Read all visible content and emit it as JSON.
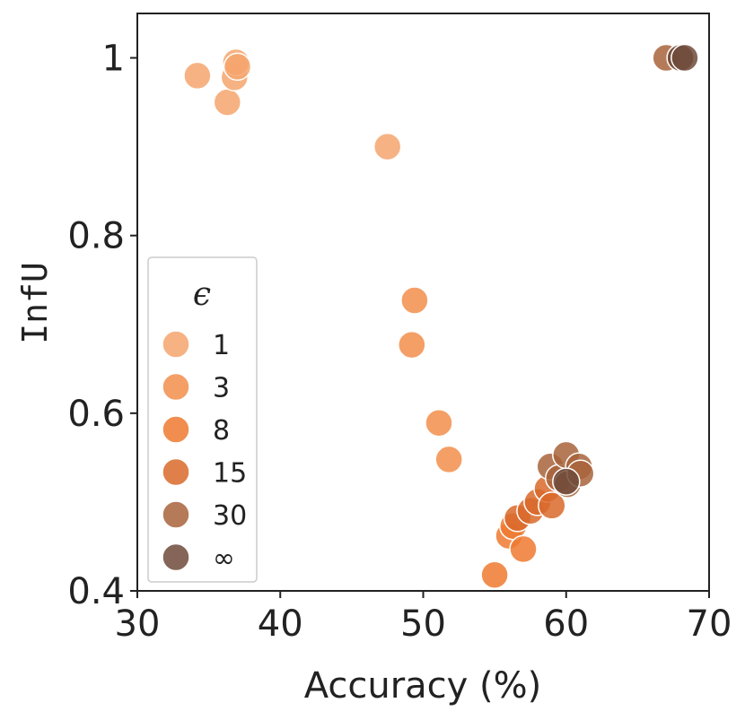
{
  "chart_data": {
    "type": "scatter",
    "xlabel": "Accuracy (%)",
    "ylabel": "InfU",
    "xlim": [
      30,
      70
    ],
    "ylim": [
      0.4,
      1.05
    ],
    "xticks": [
      "30",
      "40",
      "50",
      "60",
      "70"
    ],
    "yticks": [
      "0.4",
      "0.6",
      "0.8",
      "1"
    ],
    "grid": false,
    "legend": {
      "title": "ϵ",
      "placement": "bottom-left"
    },
    "series": [
      {
        "name": "1",
        "color": "#f6a56d",
        "points": [
          [
            34.2,
            0.98
          ],
          [
            36.3,
            0.95
          ],
          [
            36.8,
            0.978
          ],
          [
            36.9,
            0.995
          ],
          [
            37.0,
            0.99
          ],
          [
            47.5,
            0.9
          ]
        ]
      },
      {
        "name": "3",
        "color": "#f28e4b",
        "points": [
          [
            49.4,
            0.727
          ],
          [
            49.2,
            0.677
          ],
          [
            51.1,
            0.589
          ],
          [
            51.8,
            0.548
          ]
        ]
      },
      {
        "name": "8",
        "color": "#ee7a30",
        "points": [
          [
            55.0,
            0.418
          ],
          [
            56.0,
            0.462
          ],
          [
            56.3,
            0.473
          ],
          [
            57.0,
            0.447
          ]
        ]
      },
      {
        "name": "15",
        "color": "#d9692a",
        "points": [
          [
            56.6,
            0.482
          ],
          [
            57.5,
            0.49
          ],
          [
            58.0,
            0.5
          ],
          [
            58.7,
            0.515
          ],
          [
            59.0,
            0.496
          ]
        ]
      },
      {
        "name": "30",
        "color": "#a8643b",
        "points": [
          [
            58.9,
            0.54
          ],
          [
            59.5,
            0.527
          ],
          [
            60.0,
            0.553
          ],
          [
            60.1,
            0.52
          ],
          [
            60.9,
            0.54
          ],
          [
            61.0,
            0.532
          ],
          [
            67.0,
            1.0
          ]
        ]
      },
      {
        "name": "∞",
        "color": "#6f4a3a",
        "points": [
          [
            60.0,
            0.523
          ],
          [
            68.0,
            1.0
          ],
          [
            68.3,
            1.0
          ]
        ]
      }
    ]
  }
}
